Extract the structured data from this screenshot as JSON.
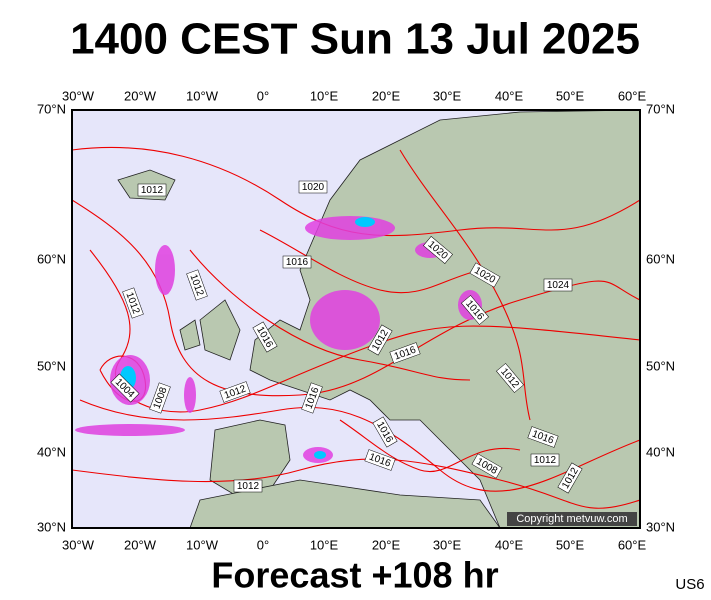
{
  "header": {
    "title": "1400 CEST Sun 13 Jul 2025"
  },
  "map": {
    "lon_labels": [
      "30°W",
      "20°W",
      "10°W",
      "0°",
      "10°E",
      "20°E",
      "30°E",
      "40°E",
      "50°E",
      "60°E"
    ],
    "lat_labels": [
      "70°N",
      "60°N",
      "50°N",
      "40°N",
      "30°N"
    ],
    "isobar_labels": [
      "1012",
      "1020",
      "1016",
      "1020",
      "1020",
      "1024",
      "1016",
      "1012",
      "1012",
      "1016",
      "1012",
      "1016",
      "1004",
      "1008",
      "1012",
      "1016",
      "1012",
      "1016",
      "1016",
      "1008",
      "1016",
      "1012",
      "1012",
      "1012"
    ],
    "copyright": "Copyright metvuw.com"
  },
  "footer": {
    "forecast": "Forecast +108 hr",
    "model": "US6"
  }
}
